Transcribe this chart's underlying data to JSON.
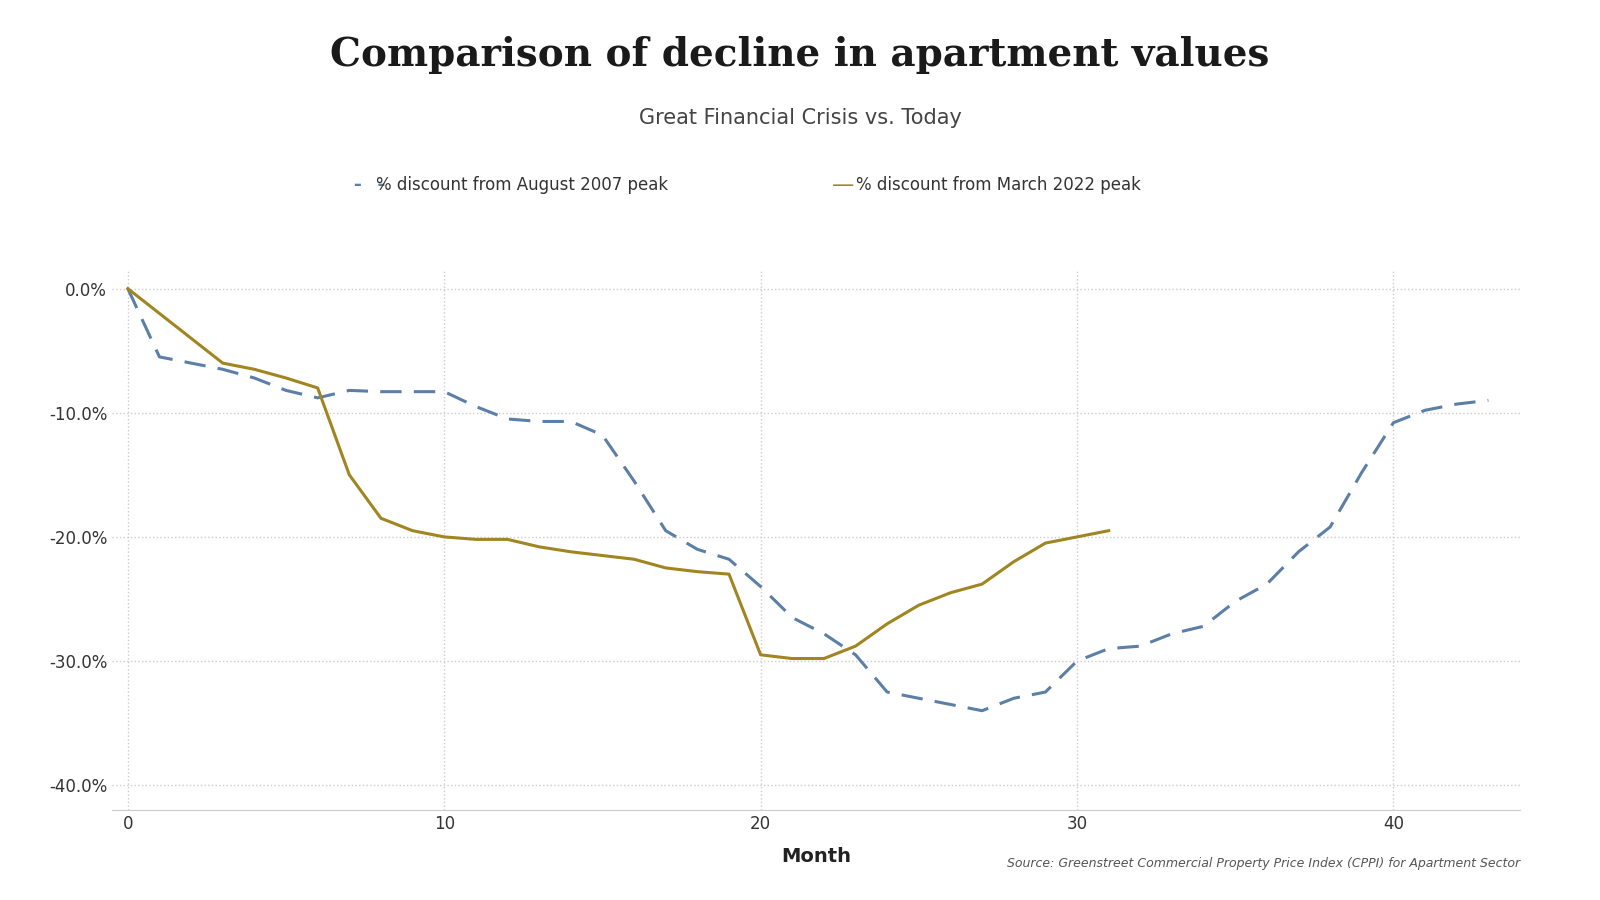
{
  "title": "Comparison of decline in apartment values",
  "subtitle": "Great Financial Crisis vs. Today",
  "xlabel": "Month",
  "source_text": "Source: Greenstreet Commercial Property Price Index (CPPI) for Apartment Sector",
  "legend_gfc": "% discount from August 2007 peak",
  "legend_today": "% discount from March 2022 peak",
  "gfc_color": "#5b7fa6",
  "today_color": "#a08520",
  "background_color": "#ffffff",
  "ylim": [
    -0.42,
    0.015
  ],
  "xlim": [
    -0.5,
    44
  ],
  "yticks": [
    0.0,
    -0.1,
    -0.2,
    -0.3,
    -0.4
  ],
  "xticks": [
    0,
    10,
    20,
    30,
    40
  ],
  "gfc_x": [
    0,
    1,
    2,
    3,
    4,
    5,
    6,
    7,
    8,
    9,
    10,
    11,
    12,
    13,
    14,
    15,
    16,
    17,
    18,
    19,
    20,
    21,
    22,
    23,
    24,
    25,
    26,
    27,
    28,
    29,
    30,
    31,
    32,
    33,
    34,
    35,
    36,
    37,
    38,
    39,
    40,
    41,
    42,
    43
  ],
  "gfc_y": [
    0.0,
    -0.055,
    -0.06,
    -0.065,
    -0.072,
    -0.082,
    -0.088,
    -0.082,
    -0.083,
    -0.083,
    -0.083,
    -0.095,
    -0.105,
    -0.107,
    -0.107,
    -0.118,
    -0.155,
    -0.195,
    -0.21,
    -0.218,
    -0.24,
    -0.265,
    -0.278,
    -0.295,
    -0.325,
    -0.33,
    -0.335,
    -0.34,
    -0.33,
    -0.325,
    -0.3,
    -0.29,
    -0.288,
    -0.278,
    -0.272,
    -0.252,
    -0.238,
    -0.212,
    -0.192,
    -0.148,
    -0.108,
    -0.098,
    -0.093,
    -0.09
  ],
  "today_x": [
    0,
    1,
    2,
    3,
    4,
    5,
    6,
    7,
    8,
    9,
    10,
    11,
    12,
    13,
    14,
    15,
    16,
    17,
    18,
    19,
    20,
    21,
    22,
    23,
    24,
    25,
    26,
    27,
    28,
    29,
    30,
    31
  ],
  "today_y": [
    0.0,
    -0.02,
    -0.04,
    -0.06,
    -0.065,
    -0.072,
    -0.08,
    -0.15,
    -0.185,
    -0.195,
    -0.2,
    -0.202,
    -0.202,
    -0.208,
    -0.212,
    -0.215,
    -0.218,
    -0.225,
    -0.228,
    -0.23,
    -0.295,
    -0.298,
    -0.298,
    -0.288,
    -0.27,
    -0.255,
    -0.245,
    -0.238,
    -0.22,
    -0.205,
    -0.2,
    -0.195
  ]
}
